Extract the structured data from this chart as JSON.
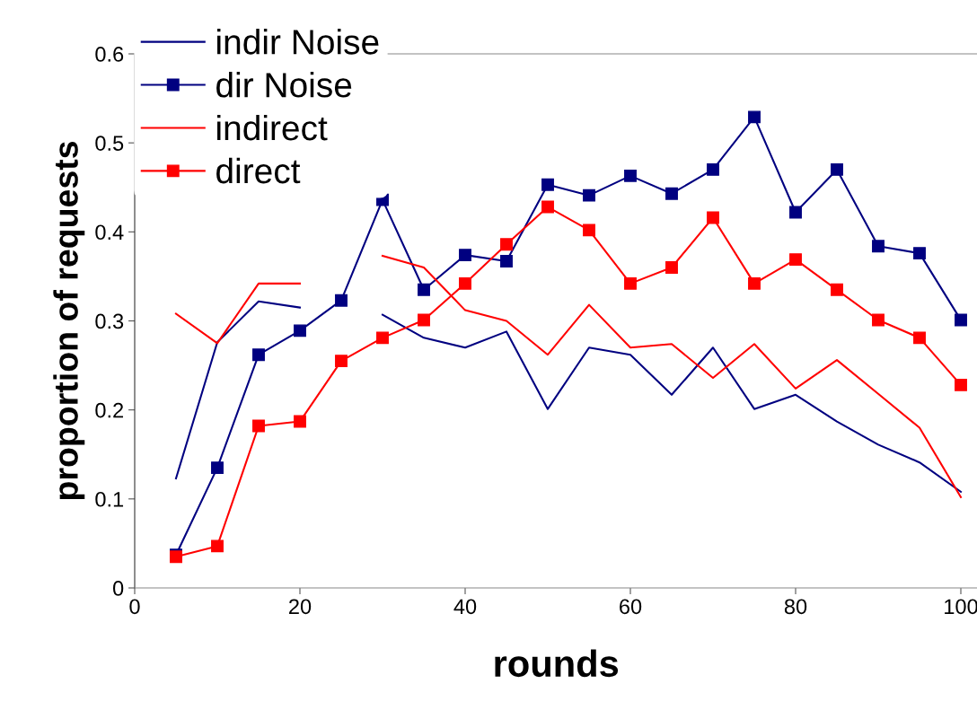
{
  "chart_data": {
    "type": "line",
    "xlabel": "rounds",
    "ylabel": "proportion of requests",
    "x": [
      5,
      10,
      15,
      20,
      25,
      30,
      35,
      40,
      45,
      50,
      55,
      60,
      65,
      70,
      75,
      80,
      85,
      90,
      95,
      100
    ],
    "xlim": [
      0,
      102
    ],
    "xticks": [
      0,
      20,
      40,
      60,
      80,
      100
    ],
    "ylim": [
      0,
      0.6
    ],
    "yticks": [
      0,
      0.1,
      0.2,
      0.3,
      0.4,
      0.5,
      0.6
    ],
    "grid": false,
    "legend": "top left",
    "line_style": "solid",
    "series": [
      {
        "name": "indir Noise",
        "color": "#000080",
        "marker": "none",
        "values": [
          0.123,
          0.276,
          0.322,
          0.315,
          null,
          0.307,
          0.281,
          0.27,
          0.288,
          0.201,
          0.27,
          0.262,
          0.217,
          0.27,
          0.201,
          0.217,
          0.187,
          0.161,
          0.141,
          0.108
        ]
      },
      {
        "name": "dir Noise",
        "color": "#000080",
        "marker": "square",
        "values": [
          0.037,
          0.135,
          0.262,
          0.289,
          0.323,
          0.436,
          0.335,
          0.374,
          0.367,
          0.453,
          0.441,
          0.463,
          0.443,
          0.47,
          0.529,
          0.422,
          0.47,
          0.384,
          0.376,
          0.301
        ]
      },
      {
        "name": "indirect",
        "color": "#ff0000",
        "marker": "none",
        "values": [
          0.308,
          0.275,
          0.342,
          0.342,
          null,
          0.373,
          0.36,
          0.312,
          0.3,
          0.262,
          0.318,
          0.27,
          0.274,
          0.236,
          0.274,
          0.224,
          0.256,
          0.218,
          0.18,
          0.102
        ]
      },
      {
        "name": "direct",
        "color": "#ff0000",
        "marker": "square",
        "values": [
          0.035,
          0.047,
          0.182,
          0.187,
          0.255,
          0.281,
          0.301,
          0.342,
          0.386,
          0.428,
          0.402,
          0.342,
          0.36,
          0.416,
          0.342,
          0.369,
          0.335,
          0.301,
          0.281,
          0.228
        ]
      }
    ]
  }
}
